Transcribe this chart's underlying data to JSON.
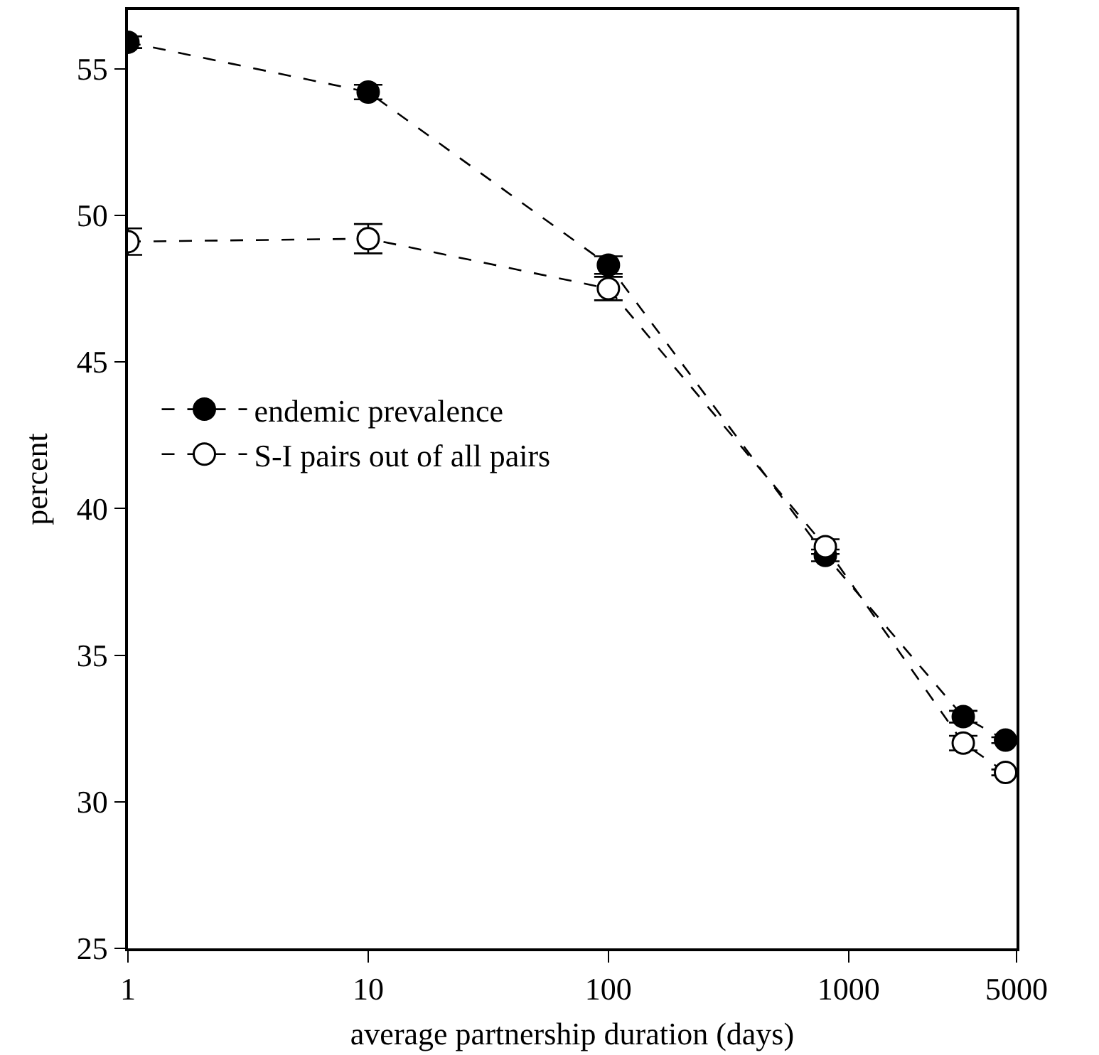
{
  "chart_data": {
    "type": "line",
    "xlabel": "average partnership duration (days)",
    "ylabel": "percent",
    "x": [
      1,
      10,
      100,
      800,
      3000,
      4500
    ],
    "series": [
      {
        "name": "endemic prevalence",
        "color": "#000000",
        "marker": "circle",
        "values": [
          55.9,
          54.2,
          48.3,
          38.4,
          32.9,
          32.1
        ],
        "errors": [
          0.2,
          0.25,
          0.3,
          0.2,
          0.2,
          0.1
        ]
      },
      {
        "name": "S-I pairs out of all pairs",
        "color": "#000000",
        "marker": "circle-open",
        "values": [
          49.1,
          49.2,
          47.5,
          38.7,
          32.0,
          31.0
        ],
        "errors": [
          0.45,
          0.5,
          0.4,
          0.25,
          0.25,
          0.1
        ]
      }
    ],
    "log": "x",
    "xlim": [
      1,
      5000
    ],
    "xticks": [
      1,
      10,
      100,
      1000,
      5000
    ],
    "ylim": [
      25,
      57
    ],
    "yticks": [
      25,
      30,
      35,
      40,
      45,
      50,
      55
    ],
    "grid": false,
    "legend": "left",
    "line_style": "dashed"
  }
}
